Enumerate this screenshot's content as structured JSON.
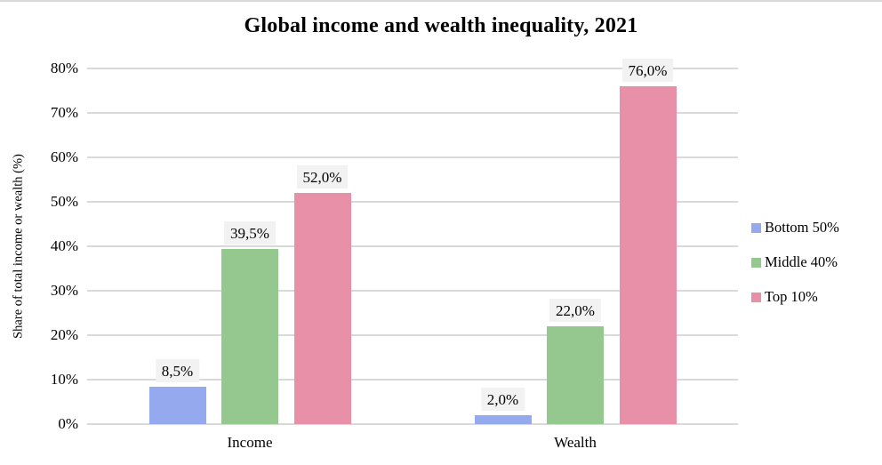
{
  "chart_data": {
    "type": "bar",
    "title": "Global income and wealth inequality, 2021",
    "ylabel": "Share of total income or wealth (%)",
    "xlabel": "",
    "categories": [
      "Income",
      "Wealth"
    ],
    "series": [
      {
        "name": "Bottom 50%",
        "color": "#94a9ee",
        "values": [
          8.5,
          2.0
        ],
        "labels": [
          "8,5%",
          "2,0%"
        ]
      },
      {
        "name": "Middle 40%",
        "color": "#95c88e",
        "values": [
          39.5,
          22.0
        ],
        "labels": [
          "39,5%",
          "22,0%"
        ]
      },
      {
        "name": "Top 10%",
        "color": "#e790a8",
        "values": [
          52.0,
          76.0
        ],
        "labels": [
          "52,0%",
          "76,0%"
        ]
      }
    ],
    "ylim": [
      0,
      80
    ],
    "ytick_step": 10,
    "yticks": [
      "0%",
      "10%",
      "20%",
      "30%",
      "40%",
      "50%",
      "60%",
      "70%",
      "80%"
    ],
    "grid": true,
    "legend_position": "right",
    "colors": {
      "gridline": "#d9d9d9",
      "data_label_background": "#f2f2f2",
      "text": "#000000",
      "top_border": "#d9d9d9"
    }
  }
}
